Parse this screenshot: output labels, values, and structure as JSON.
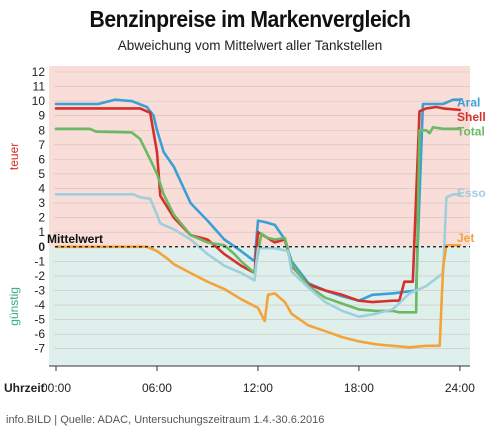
{
  "title": "Benzinpreise im Markenvergleich",
  "subtitle": "Abweichung vom Mittelwert aller Tankstellen",
  "footer": "info.BILD | Quelle: ADAC, Untersuchungszeitraum 1.4.-30.6.2016",
  "chart_data": {
    "type": "line",
    "title": "Benzinpreise im Markenvergleich",
    "subtitle": "Abweichung vom Mittelwert aller Tankstellen",
    "xlabel": "Uhrzeit",
    "ylabel_top": "teuer",
    "ylabel_bottom": "günstig",
    "reference_line": {
      "value": 0,
      "label": "Mittelwert",
      "tick_label": "0"
    },
    "x_ticks": [
      "00:00",
      "06:00",
      "12:00",
      "18:00",
      "24:00"
    ],
    "xlim": [
      0,
      24.6
    ],
    "ylim": [
      -7.5,
      12
    ],
    "y_ticks": [
      12,
      11,
      10,
      9,
      8,
      7,
      6,
      5,
      4,
      3,
      2,
      1,
      0,
      -1,
      -2,
      -3,
      -4,
      -5,
      -6,
      -7
    ],
    "colors": {
      "teuer_bg": "#f9ddd8",
      "guenstig_bg": "#dff0ec",
      "grid": "#c9b7b1"
    },
    "series": [
      {
        "name": "Aral",
        "color": "#3aa0d5",
        "points": [
          [
            0,
            9.8
          ],
          [
            2.5,
            9.8
          ],
          [
            3.5,
            10.1
          ],
          [
            4.5,
            10
          ],
          [
            5.4,
            9.6
          ],
          [
            5.8,
            9.0
          ],
          [
            6.0,
            8.0
          ],
          [
            6.4,
            6.5
          ],
          [
            7.0,
            5.5
          ],
          [
            8.0,
            3.0
          ],
          [
            9.0,
            1.8
          ],
          [
            10.0,
            0.5
          ],
          [
            11.0,
            -0.3
          ],
          [
            11.8,
            -1.0
          ],
          [
            12.0,
            1.8
          ],
          [
            12.4,
            1.7
          ],
          [
            13.0,
            1.5
          ],
          [
            13.6,
            0.5
          ],
          [
            14.0,
            -1.0
          ],
          [
            15.0,
            -2.5
          ],
          [
            16.0,
            -3.0
          ],
          [
            17.0,
            -3.4
          ],
          [
            18.0,
            -3.7
          ],
          [
            18.8,
            -3.3
          ],
          [
            20.0,
            -3.2
          ],
          [
            21.4,
            -3.0
          ],
          [
            21.8,
            9.8
          ],
          [
            22.4,
            9.8
          ],
          [
            23.0,
            9.8
          ],
          [
            23.2,
            9.9
          ],
          [
            23.6,
            10.1
          ],
          [
            24.0,
            10.1
          ]
        ]
      },
      {
        "name": "Shell",
        "color": "#d5302b",
        "points": [
          [
            0,
            9.5
          ],
          [
            5.0,
            9.5
          ],
          [
            5.6,
            9.2
          ],
          [
            6.0,
            6.5
          ],
          [
            6.2,
            3.5
          ],
          [
            7.0,
            2.0
          ],
          [
            8.0,
            0.8
          ],
          [
            9.0,
            0.5
          ],
          [
            9.6,
            -0.1
          ],
          [
            10.0,
            -0.5
          ],
          [
            11.0,
            -1.3
          ],
          [
            11.8,
            -1.8
          ],
          [
            12.0,
            1.0
          ],
          [
            13.0,
            0.3
          ],
          [
            13.6,
            0.5
          ],
          [
            14.0,
            -1.3
          ],
          [
            15.0,
            -2.6
          ],
          [
            16.0,
            -3.0
          ],
          [
            17.0,
            -3.3
          ],
          [
            18.0,
            -3.7
          ],
          [
            18.8,
            -3.8
          ],
          [
            20.0,
            -3.7
          ],
          [
            20.4,
            -3.7
          ],
          [
            20.7,
            -2.4
          ],
          [
            21.2,
            -2.4
          ],
          [
            21.6,
            9.3
          ],
          [
            22.0,
            9.5
          ],
          [
            22.6,
            9.6
          ],
          [
            23.0,
            9.5
          ],
          [
            24.0,
            9.4
          ]
        ]
      },
      {
        "name": "Total",
        "color": "#6ab964",
        "points": [
          [
            0,
            8.1
          ],
          [
            2.0,
            8.1
          ],
          [
            2.4,
            7.9
          ],
          [
            4.5,
            7.85
          ],
          [
            5.0,
            7.4
          ],
          [
            5.6,
            6.0
          ],
          [
            6.0,
            5.0
          ],
          [
            6.4,
            3.6
          ],
          [
            7.0,
            2.2
          ],
          [
            8.0,
            0.8
          ],
          [
            9.0,
            0.3
          ],
          [
            10.0,
            0.1
          ],
          [
            10.6,
            -0.5
          ],
          [
            11.0,
            -1.0
          ],
          [
            11.8,
            -1.8
          ],
          [
            12.2,
            0.9
          ],
          [
            12.6,
            0.6
          ],
          [
            13.0,
            0.5
          ],
          [
            13.6,
            0.6
          ],
          [
            14.0,
            -1.2
          ],
          [
            15.0,
            -2.7
          ],
          [
            16.0,
            -3.5
          ],
          [
            17.0,
            -3.9
          ],
          [
            18.0,
            -4.3
          ],
          [
            19.0,
            -4.4
          ],
          [
            20.0,
            -4.4
          ],
          [
            20.4,
            -4.5
          ],
          [
            21.4,
            -4.5
          ],
          [
            21.6,
            8.0
          ],
          [
            22.0,
            8.0
          ],
          [
            22.2,
            7.8
          ],
          [
            22.4,
            8.2
          ],
          [
            23.0,
            8.1
          ],
          [
            24.0,
            8.1
          ]
        ]
      },
      {
        "name": "Esso",
        "color": "#9fcfdd",
        "points": [
          [
            0,
            3.6
          ],
          [
            4.6,
            3.6
          ],
          [
            5.0,
            3.4
          ],
          [
            5.6,
            3.3
          ],
          [
            6.0,
            2.2
          ],
          [
            6.2,
            1.6
          ],
          [
            7.0,
            1.2
          ],
          [
            8.0,
            0.5
          ],
          [
            9.0,
            -0.5
          ],
          [
            10.0,
            -1.3
          ],
          [
            11.0,
            -1.8
          ],
          [
            11.8,
            -2.3
          ],
          [
            12.0,
            -0.1
          ],
          [
            13.0,
            -0.1
          ],
          [
            13.8,
            -0.3
          ],
          [
            14.0,
            -1.7
          ],
          [
            15.0,
            -2.8
          ],
          [
            16.0,
            -3.8
          ],
          [
            17.0,
            -4.4
          ],
          [
            18.0,
            -4.8
          ],
          [
            19.0,
            -4.6
          ],
          [
            20.0,
            -4.3
          ],
          [
            21.0,
            -3.2
          ],
          [
            22.0,
            -2.7
          ],
          [
            23.0,
            -1.8
          ],
          [
            23.2,
            3.4
          ],
          [
            23.6,
            3.6
          ],
          [
            24.0,
            3.6
          ]
        ]
      },
      {
        "name": "Jet",
        "color": "#f4a23a",
        "points": [
          [
            0,
            0
          ],
          [
            5.4,
            0
          ],
          [
            6.0,
            -0.3
          ],
          [
            6.6,
            -0.8
          ],
          [
            7.0,
            -1.2
          ],
          [
            8.0,
            -1.8
          ],
          [
            9.0,
            -2.4
          ],
          [
            10.0,
            -2.9
          ],
          [
            11.0,
            -3.6
          ],
          [
            12.0,
            -4.2
          ],
          [
            12.4,
            -5.1
          ],
          [
            12.6,
            -3.3
          ],
          [
            13.0,
            -3.2
          ],
          [
            13.6,
            -3.8
          ],
          [
            14.0,
            -4.6
          ],
          [
            15.0,
            -5.4
          ],
          [
            16.0,
            -5.8
          ],
          [
            17.0,
            -6.2
          ],
          [
            18.0,
            -6.5
          ],
          [
            19.0,
            -6.7
          ],
          [
            20.0,
            -6.8
          ],
          [
            21.0,
            -6.9
          ],
          [
            22.0,
            -6.8
          ],
          [
            22.8,
            -6.8
          ],
          [
            23.0,
            -1.4
          ],
          [
            23.2,
            0.1
          ],
          [
            23.6,
            0.1
          ],
          [
            24.0,
            0.1
          ]
        ]
      }
    ]
  }
}
